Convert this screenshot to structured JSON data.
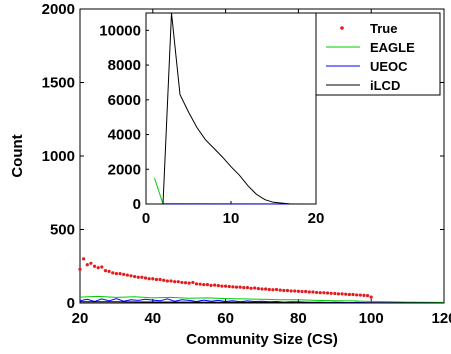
{
  "chart_data": [
    {
      "type": "scatter",
      "xlabel": "Community Size (CS)",
      "ylabel": "Count",
      "xlim": [
        20,
        120
      ],
      "ylim": [
        0,
        2000
      ],
      "xticks": [
        20,
        40,
        60,
        80,
        100,
        120
      ],
      "yticks": [
        0,
        500,
        1000,
        1500,
        2000
      ],
      "legend": "top-right",
      "legend_labels": [
        "True",
        "EAGLE",
        "UEOC",
        "iLCD"
      ],
      "series": [
        {
          "name": "True",
          "color": "#e41a1c",
          "style": "dots",
          "x": [
            20,
            21,
            22,
            23,
            24,
            25,
            26,
            27,
            28,
            29,
            30,
            31,
            32,
            33,
            34,
            35,
            36,
            37,
            38,
            39,
            40,
            41,
            42,
            43,
            44,
            45,
            46,
            47,
            48,
            49,
            50,
            51,
            52,
            53,
            54,
            55,
            56,
            57,
            58,
            59,
            60,
            61,
            62,
            63,
            64,
            65,
            66,
            67,
            68,
            69,
            70,
            71,
            72,
            73,
            74,
            75,
            76,
            77,
            78,
            79,
            80,
            81,
            82,
            83,
            84,
            85,
            86,
            87,
            88,
            89,
            90,
            91,
            92,
            93,
            94,
            95,
            96,
            97,
            98,
            99,
            100
          ],
          "y": [
            230,
            300,
            260,
            270,
            250,
            240,
            245,
            220,
            215,
            205,
            200,
            200,
            195,
            190,
            185,
            180,
            175,
            175,
            170,
            165,
            165,
            160,
            160,
            155,
            150,
            150,
            145,
            145,
            140,
            138,
            135,
            140,
            130,
            128,
            125,
            125,
            120,
            122,
            118,
            115,
            115,
            112,
            110,
            108,
            108,
            105,
            105,
            100,
            102,
            98,
            95,
            95,
            92,
            90,
            92,
            88,
            85,
            85,
            82,
            82,
            80,
            78,
            78,
            75,
            75,
            72,
            70,
            70,
            68,
            66,
            65,
            62,
            62,
            60,
            58,
            58,
            55,
            54,
            52,
            50,
            40
          ]
        },
        {
          "name": "EAGLE",
          "color": "#00cc00",
          "style": "line",
          "x": [
            20,
            25,
            30,
            35,
            40,
            45,
            50,
            55,
            60,
            65,
            70,
            75,
            80,
            85,
            90,
            95,
            100,
            105,
            110,
            115,
            120
          ],
          "y": [
            40,
            45,
            38,
            42,
            35,
            38,
            32,
            35,
            30,
            28,
            25,
            22,
            22,
            18,
            15,
            14,
            10,
            8,
            6,
            5,
            4
          ]
        },
        {
          "name": "UEOC",
          "color": "#0000ff",
          "style": "line",
          "x": [
            20,
            22,
            24,
            26,
            28,
            30,
            32,
            34,
            36,
            38,
            40,
            42,
            44,
            46,
            48,
            50,
            52,
            54,
            56,
            58,
            60,
            62,
            64,
            66,
            68,
            70,
            72,
            74,
            76,
            78,
            80,
            82,
            84,
            86,
            88,
            90,
            92,
            94,
            96,
            98,
            100,
            105,
            110,
            115,
            120
          ],
          "y": [
            15,
            25,
            10,
            28,
            15,
            30,
            12,
            22,
            18,
            25,
            20,
            15,
            28,
            12,
            22,
            18,
            10,
            20,
            12,
            18,
            10,
            15,
            8,
            14,
            10,
            12,
            8,
            10,
            6,
            9,
            8,
            6,
            5,
            6,
            4,
            5,
            4,
            3,
            4,
            3,
            2,
            2,
            1,
            1,
            0
          ]
        },
        {
          "name": "iLCD",
          "color": "#000000",
          "style": "line",
          "x": [
            20,
            30,
            40,
            50,
            60,
            70,
            80,
            90,
            100,
            110,
            120
          ],
          "y": [
            8,
            8,
            7,
            6,
            5,
            4,
            3,
            2,
            1,
            1,
            0
          ]
        }
      ]
    },
    {
      "type": "line",
      "xlim": [
        0,
        20
      ],
      "ylim": [
        0,
        11000
      ],
      "xticks": [
        0,
        10,
        20
      ],
      "yticks": [
        0,
        2000,
        4000,
        6000,
        8000,
        10000
      ],
      "series": [
        {
          "name": "EAGLE",
          "color": "#00cc00",
          "x": [
            1,
            2
          ],
          "y": [
            1500,
            0
          ]
        },
        {
          "name": "UEOC",
          "color": "#0000ff",
          "x": [
            2,
            20
          ],
          "y": [
            20,
            0
          ]
        },
        {
          "name": "iLCD",
          "color": "#000000",
          "x": [
            2,
            3,
            4,
            5,
            6,
            7,
            8,
            9,
            10,
            11,
            12,
            13,
            14,
            15,
            16,
            17,
            18,
            19,
            20
          ],
          "y": [
            0,
            11000,
            6300,
            5300,
            4400,
            3700,
            3200,
            2700,
            2150,
            1650,
            1050,
            550,
            250,
            100,
            50,
            0,
            0,
            0,
            0
          ]
        }
      ]
    }
  ]
}
